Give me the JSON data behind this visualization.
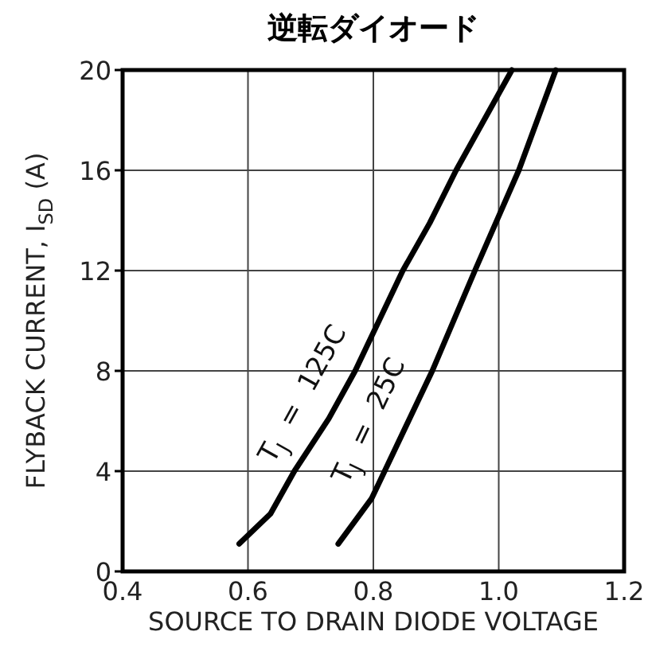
{
  "chart_data": {
    "type": "line",
    "title": "逆転ダイオード",
    "xlabel": "SOURCE TO DRAIN DIODE VOLTAGE",
    "ylabel": "FLYBACK CURRENT, I$_{SD}$ (A)",
    "xlim": [
      0.4,
      1.2
    ],
    "ylim": [
      0,
      20
    ],
    "xticks": [
      0.4,
      0.6,
      0.8,
      {
        "value": 1,
        "label": "1.0"
      },
      1.2
    ],
    "yticks": [
      0,
      4,
      8,
      12,
      16,
      20
    ],
    "grid": true,
    "marker": "none",
    "line_style": "solid",
    "series": [
      {
        "name": "T$_{J}$ = 125C",
        "color": "#000000",
        "x": [
          0.586,
          0.636,
          0.674,
          0.729,
          0.771,
          0.847,
          0.89,
          0.932,
          1.021
        ],
        "values": [
          1.1,
          2.3,
          4.0,
          6.1,
          8.0,
          12.0,
          13.9,
          16.0,
          20.0
        ]
      },
      {
        "name": "T$_{J}$ = 25C",
        "color": "#000000",
        "x": [
          0.744,
          0.797,
          0.818,
          0.894,
          0.962,
          1.032,
          1.091
        ],
        "values": [
          1.1,
          2.9,
          4.0,
          8.0,
          12.0,
          16.0,
          20.0
        ]
      }
    ]
  }
}
